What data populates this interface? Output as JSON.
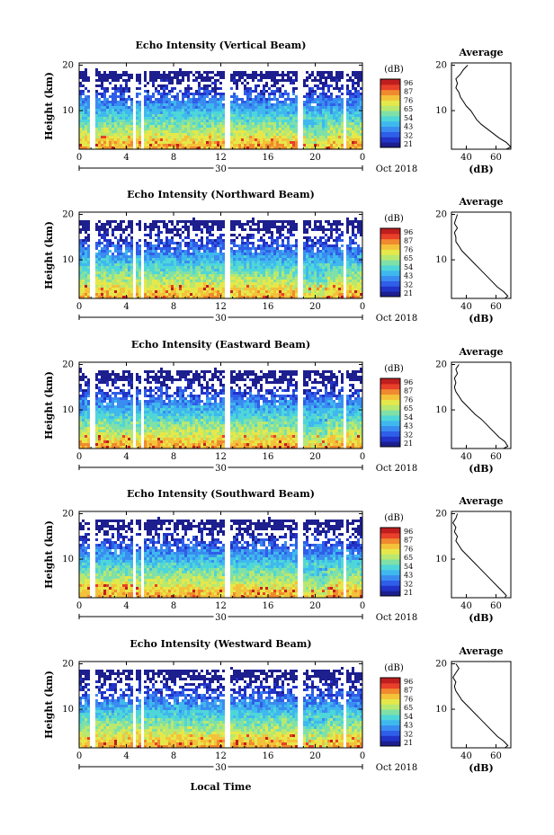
{
  "figure": {
    "xlabel": "Local Time",
    "date_label": "Oct 2018",
    "day_label": "30",
    "cb_unit": "(dB)",
    "avg_title": "Average",
    "avg_xlabel": "(dB)"
  },
  "colormap": [
    "#1d1f8f",
    "#2233c8",
    "#2f5ee8",
    "#3a8cf0",
    "#3fb8ee",
    "#4fd6d8",
    "#7fe0a8",
    "#b8e870",
    "#e6e84a",
    "#f4c23a",
    "#f08a2e",
    "#e8402a",
    "#c01e1e"
  ],
  "chart_data": [
    {
      "type": "heatmap",
      "title": "Echo Intensity (Vertical Beam)",
      "ylabel": "Height (km)",
      "x_ticks": [
        "0",
        "4",
        "8",
        "12",
        "16",
        "20",
        "0"
      ],
      "y_ticks": [
        "10",
        "20"
      ],
      "xlim": [
        0,
        24
      ],
      "ylim": [
        1.5,
        20.5
      ],
      "colorbar_ticks": [
        "96",
        "87",
        "76",
        "65",
        "54",
        "43",
        "32",
        "21"
      ],
      "data_gaps_hours": [
        [
          1.0,
          1.4
        ],
        [
          4.5,
          4.8
        ],
        [
          5.2,
          5.5
        ],
        [
          12.4,
          12.7
        ],
        [
          18.6,
          18.9
        ],
        [
          22.4,
          22.6
        ]
      ],
      "average": {
        "x_ticks": [
          "40",
          "60"
        ],
        "y_ticks": [
          "10",
          "20"
        ],
        "xlim": [
          30,
          70
        ],
        "height_km": [
          1.5,
          2,
          3,
          4,
          5,
          6,
          7,
          8,
          9,
          10,
          11,
          12,
          13,
          14,
          15,
          16,
          17,
          18,
          19,
          20
        ],
        "intensity_db": [
          67,
          70,
          67,
          62,
          58,
          54,
          50,
          47,
          45,
          43,
          40,
          38,
          36,
          35,
          33,
          34,
          33,
          36,
          38,
          41
        ]
      }
    },
    {
      "type": "heatmap",
      "title": "Echo Intensity (Northward Beam)",
      "ylabel": "Height (km)",
      "x_ticks": [
        "0",
        "4",
        "8",
        "12",
        "16",
        "20",
        "0"
      ],
      "y_ticks": [
        "10",
        "20"
      ],
      "xlim": [
        0,
        24
      ],
      "ylim": [
        1.5,
        20.5
      ],
      "colorbar_ticks": [
        "96",
        "87",
        "76",
        "65",
        "54",
        "43",
        "32",
        "21"
      ],
      "data_gaps_hours": [
        [
          1.0,
          1.4
        ],
        [
          4.5,
          4.8
        ],
        [
          5.2,
          5.5
        ],
        [
          12.4,
          12.7
        ],
        [
          18.6,
          18.9
        ],
        [
          22.4,
          22.6
        ]
      ],
      "average": {
        "x_ticks": [
          "40",
          "60"
        ],
        "y_ticks": [
          "10",
          "20"
        ],
        "xlim": [
          30,
          70
        ],
        "height_km": [
          1.5,
          2,
          3,
          4,
          5,
          6,
          7,
          8,
          9,
          10,
          11,
          12,
          13,
          14,
          15,
          16,
          17,
          18,
          19,
          20
        ],
        "intensity_db": [
          66,
          68,
          65,
          61,
          58,
          55,
          52,
          49,
          46,
          43,
          40,
          37,
          35,
          33,
          33,
          32,
          34,
          32,
          33,
          34
        ]
      }
    },
    {
      "type": "heatmap",
      "title": "Echo Intensity (Eastward Beam)",
      "ylabel": "Height (km)",
      "x_ticks": [
        "0",
        "4",
        "8",
        "12",
        "16",
        "20",
        "0"
      ],
      "y_ticks": [
        "10",
        "20"
      ],
      "xlim": [
        0,
        24
      ],
      "ylim": [
        1.5,
        20.5
      ],
      "colorbar_ticks": [
        "96",
        "87",
        "76",
        "65",
        "54",
        "43",
        "32",
        "21"
      ],
      "data_gaps_hours": [
        [
          1.0,
          1.4
        ],
        [
          4.5,
          4.8
        ],
        [
          5.2,
          5.5
        ],
        [
          12.4,
          12.7
        ],
        [
          18.6,
          18.9
        ],
        [
          22.4,
          22.6
        ]
      ],
      "average": {
        "x_ticks": [
          "40",
          "60"
        ],
        "y_ticks": [
          "10",
          "20"
        ],
        "xlim": [
          30,
          70
        ],
        "height_km": [
          1.5,
          2,
          3,
          4,
          5,
          6,
          7,
          8,
          9,
          10,
          11,
          12,
          13,
          14,
          15,
          16,
          17,
          18,
          19,
          20
        ],
        "intensity_db": [
          65,
          68,
          66,
          62,
          59,
          56,
          53,
          50,
          46,
          43,
          40,
          37,
          35,
          33,
          32,
          33,
          32,
          34,
          33,
          35
        ]
      }
    },
    {
      "type": "heatmap",
      "title": "Echo Intensity (Southward Beam)",
      "ylabel": "Height (km)",
      "x_ticks": [
        "0",
        "4",
        "8",
        "12",
        "16",
        "20",
        "0"
      ],
      "y_ticks": [
        "10",
        "20"
      ],
      "xlim": [
        0,
        24
      ],
      "ylim": [
        1.5,
        20.5
      ],
      "colorbar_ticks": [
        "96",
        "87",
        "76",
        "65",
        "54",
        "43",
        "32",
        "21"
      ],
      "data_gaps_hours": [
        [
          1.0,
          1.4
        ],
        [
          4.5,
          4.8
        ],
        [
          5.2,
          5.5
        ],
        [
          12.4,
          12.7
        ],
        [
          18.6,
          18.9
        ],
        [
          22.4,
          22.6
        ]
      ],
      "average": {
        "x_ticks": [
          "40",
          "60"
        ],
        "y_ticks": [
          "10",
          "20"
        ],
        "xlim": [
          30,
          70
        ],
        "height_km": [
          1.5,
          2,
          3,
          4,
          5,
          6,
          7,
          8,
          9,
          10,
          11,
          12,
          13,
          14,
          15,
          16,
          17,
          18,
          19,
          20
        ],
        "intensity_db": [
          66,
          67,
          64,
          61,
          58,
          55,
          52,
          49,
          46,
          43,
          40,
          37,
          35,
          33,
          34,
          32,
          33,
          31,
          33,
          34
        ]
      }
    },
    {
      "type": "heatmap",
      "title": "Echo Intensity (Westward Beam)",
      "ylabel": "Height (km)",
      "x_ticks": [
        "0",
        "4",
        "8",
        "12",
        "16",
        "20",
        "0"
      ],
      "y_ticks": [
        "10",
        "20"
      ],
      "xlim": [
        0,
        24
      ],
      "ylim": [
        1.5,
        20.5
      ],
      "colorbar_ticks": [
        "96",
        "87",
        "76",
        "65",
        "54",
        "43",
        "32",
        "21"
      ],
      "data_gaps_hours": [
        [
          1.0,
          1.4
        ],
        [
          4.5,
          4.8
        ],
        [
          5.2,
          5.5
        ],
        [
          12.4,
          12.7
        ],
        [
          18.6,
          18.9
        ],
        [
          22.4,
          22.6
        ]
      ],
      "average": {
        "x_ticks": [
          "40",
          "60"
        ],
        "y_ticks": [
          "10",
          "20"
        ],
        "xlim": [
          30,
          70
        ],
        "height_km": [
          1.5,
          2,
          3,
          4,
          5,
          6,
          7,
          8,
          9,
          10,
          11,
          12,
          13,
          14,
          15,
          16,
          17,
          18,
          19,
          20
        ],
        "intensity_db": [
          66,
          68,
          65,
          61,
          58,
          55,
          52,
          49,
          46,
          43,
          40,
          37,
          35,
          33,
          32,
          33,
          31,
          33,
          35,
          33
        ]
      }
    }
  ]
}
